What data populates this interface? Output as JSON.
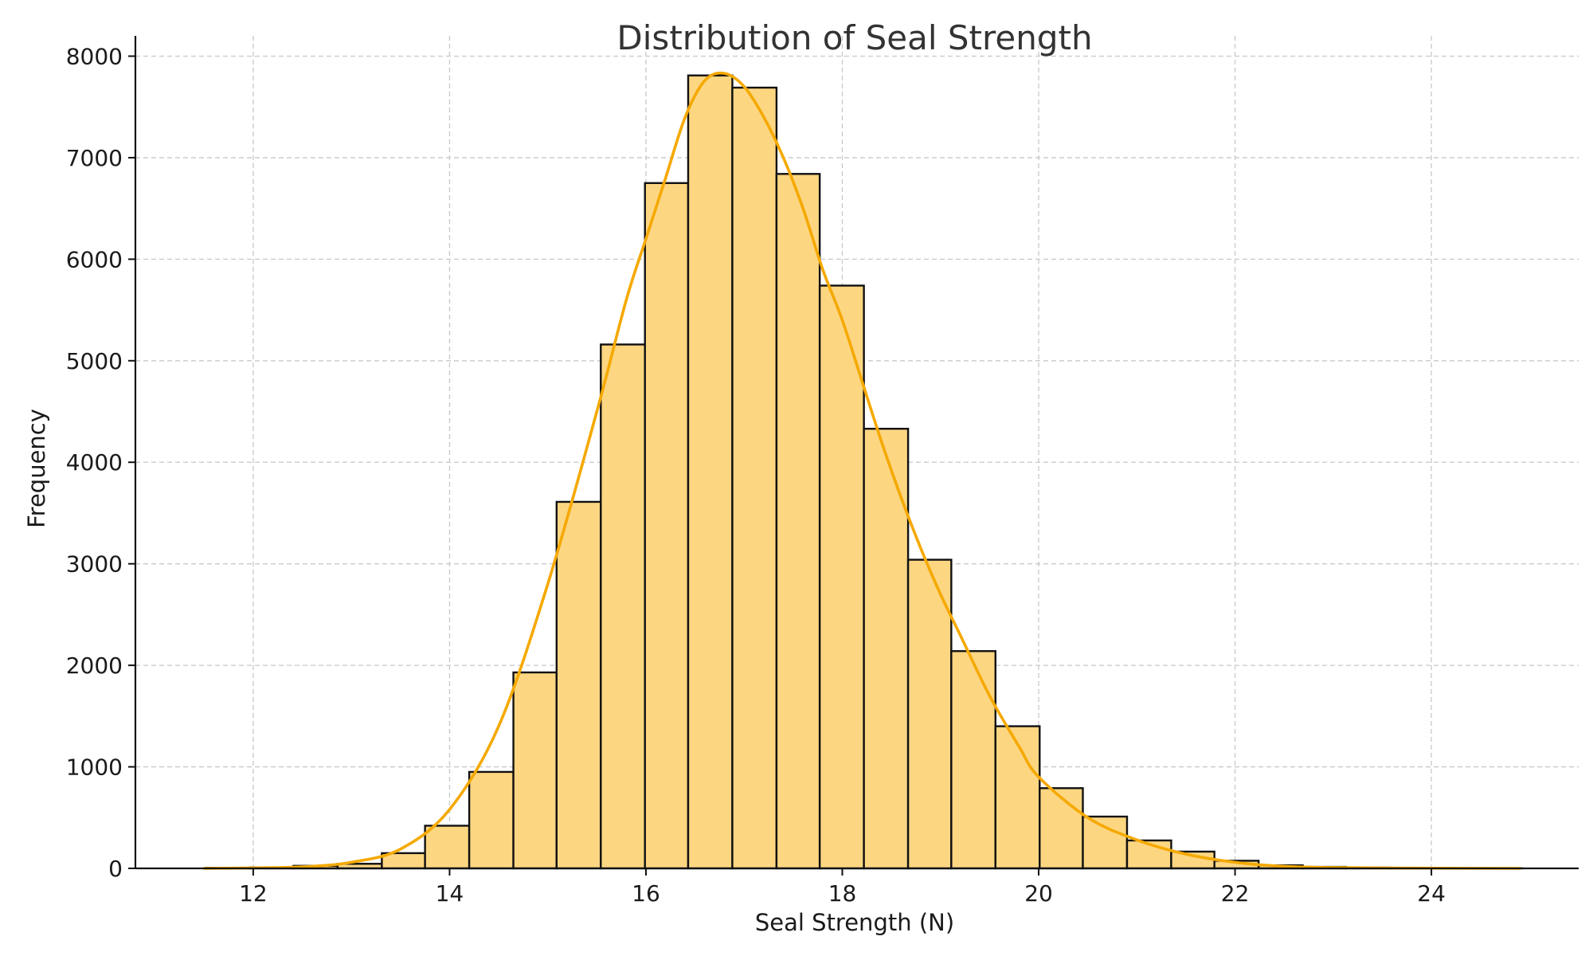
{
  "chart_data": {
    "type": "bar",
    "title": "Distribution of Seal Strength",
    "xlabel": "Seal Strength (N)",
    "ylabel": "Frequency",
    "xlim": [
      10.8,
      25.5
    ],
    "ylim": [
      0,
      8200
    ],
    "x_ticks": [
      12,
      14,
      16,
      18,
      20,
      22,
      24
    ],
    "y_ticks": [
      0,
      1000,
      2000,
      3000,
      4000,
      5000,
      6000,
      7000,
      8000
    ],
    "grid": true,
    "bin_edges": [
      11.52,
      11.97,
      12.41,
      12.86,
      13.31,
      13.75,
      14.2,
      14.65,
      15.09,
      15.54,
      15.99,
      16.43,
      16.88,
      17.33,
      17.77,
      18.22,
      18.67,
      19.11,
      19.56,
      20.01,
      20.45,
      20.9,
      21.35,
      21.79,
      22.24,
      22.69,
      23.13,
      23.58,
      24.03,
      24.47,
      24.92
    ],
    "values": [
      5,
      10,
      25,
      45,
      150,
      420,
      950,
      1930,
      3610,
      5160,
      6750,
      7810,
      7690,
      6840,
      5740,
      4330,
      3040,
      2140,
      1400,
      790,
      510,
      275,
      165,
      75,
      30,
      15,
      8,
      4,
      2,
      1
    ],
    "kde_x": [
      11.5,
      12.0,
      12.5,
      13.0,
      13.5,
      14.0,
      14.5,
      15.0,
      15.5,
      15.8,
      16.0,
      16.2,
      16.4,
      16.6,
      16.8,
      17.0,
      17.2,
      17.4,
      17.6,
      17.8,
      18.0,
      18.2,
      18.4,
      18.6,
      18.8,
      19.0,
      19.2,
      19.5,
      19.8,
      20.0,
      20.5,
      21.0,
      21.5,
      22.0,
      22.5,
      23.0,
      24.0,
      24.9
    ],
    "kde_y": [
      0,
      5,
      15,
      60,
      190,
      580,
      1400,
      2800,
      4500,
      5600,
      6200,
      6800,
      7400,
      7760,
      7830,
      7700,
      7400,
      7000,
      6500,
      5900,
      5400,
      4800,
      4200,
      3650,
      3150,
      2700,
      2300,
      1700,
      1200,
      900,
      500,
      280,
      140,
      60,
      20,
      8,
      2,
      0
    ],
    "colors": {
      "bar_fill": "#fdd682",
      "bar_edge": "#111111",
      "kde_line": "#f5a900"
    }
  }
}
